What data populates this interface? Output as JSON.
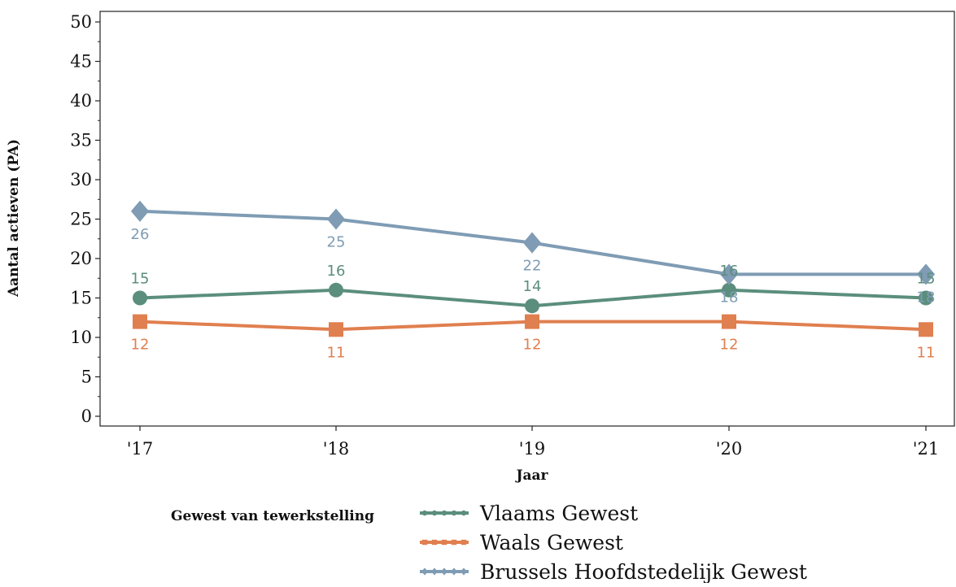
{
  "chart_data": {
    "type": "line",
    "xlabel": "Jaar",
    "ylabel": "Aantal actieven (PA)",
    "categories": [
      "'17",
      "'18",
      "'19",
      "'20",
      "'21"
    ],
    "ylim": [
      0,
      50
    ],
    "yticks": [
      "0",
      "5",
      "10",
      "15",
      "20",
      "25",
      "30",
      "35",
      "40",
      "45",
      "50"
    ],
    "grid": false,
    "legend_title": "Gewest van tewerkstelling",
    "legend_position": "bottom",
    "series": [
      {
        "name": "Vlaams Gewest",
        "values": [
          15,
          16,
          14,
          16,
          15
        ],
        "color": "#5b8e7d",
        "marker": "circle",
        "label_position": "above"
      },
      {
        "name": "Waals Gewest",
        "values": [
          12,
          11,
          12,
          12,
          11
        ],
        "color": "#e07f4f",
        "marker": "square",
        "label_position": "below"
      },
      {
        "name": "Brussels Hoofdstedelijk Gewest",
        "values": [
          26,
          25,
          22,
          18,
          18
        ],
        "color": "#7f9cb4",
        "marker": "diamond",
        "label_position": "below"
      }
    ]
  }
}
